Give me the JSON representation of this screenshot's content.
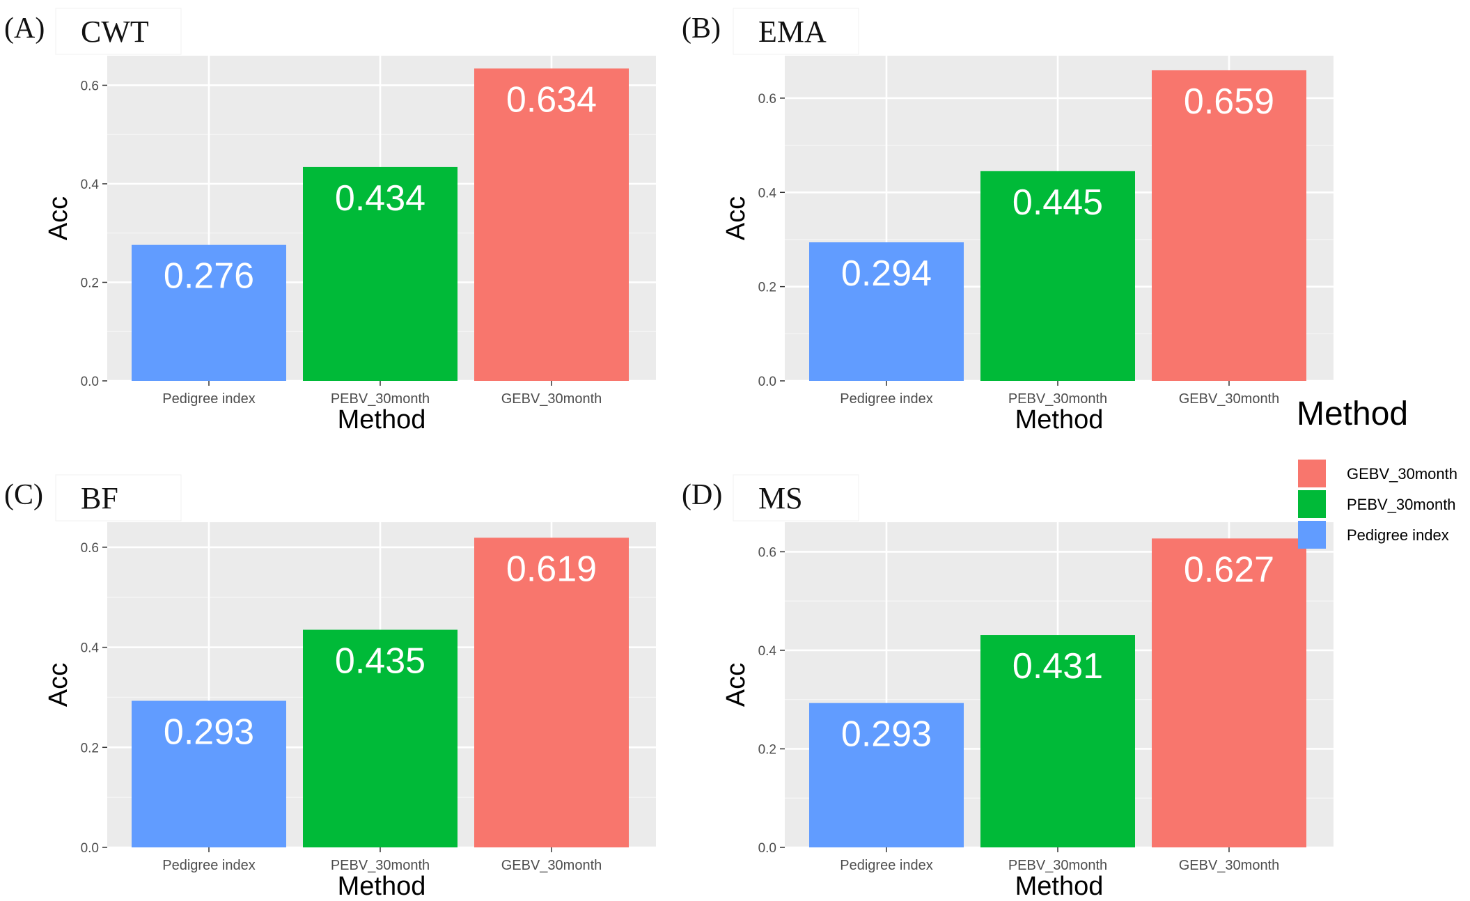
{
  "chart_data": [
    {
      "type": "bar",
      "panel_letter": "(A)",
      "title": "CWT",
      "xlabel": "Method",
      "ylabel": "Acc",
      "categories": [
        "Pedigree index",
        "PEBV_30month",
        "GEBV_30month"
      ],
      "values": [
        0.276,
        0.434,
        0.634
      ],
      "value_labels": [
        "0.276",
        "0.434",
        "0.634"
      ],
      "colors": [
        "#619CFF",
        "#00BA38",
        "#F8766D"
      ],
      "ylim": [
        0,
        0.66
      ],
      "yticks": [
        0.0,
        0.2,
        0.4,
        0.6
      ],
      "ytick_labels": [
        "0.0",
        "0.2",
        "0.4",
        "0.6"
      ],
      "grid": true
    },
    {
      "type": "bar",
      "panel_letter": "(B)",
      "title": "EMA",
      "xlabel": "Method",
      "ylabel": "Acc",
      "categories": [
        "Pedigree index",
        "PEBV_30month",
        "GEBV_30month"
      ],
      "values": [
        0.294,
        0.445,
        0.659
      ],
      "value_labels": [
        "0.294",
        "0.445",
        "0.659"
      ],
      "colors": [
        "#619CFF",
        "#00BA38",
        "#F8766D"
      ],
      "ylim": [
        0,
        0.69
      ],
      "yticks": [
        0.0,
        0.2,
        0.4,
        0.6
      ],
      "ytick_labels": [
        "0.0",
        "0.2",
        "0.4",
        "0.6"
      ],
      "grid": true
    },
    {
      "type": "bar",
      "panel_letter": "(C)",
      "title": "BF",
      "xlabel": "Method",
      "ylabel": "Acc",
      "categories": [
        "Pedigree index",
        "PEBV_30month",
        "GEBV_30month"
      ],
      "values": [
        0.293,
        0.435,
        0.619
      ],
      "value_labels": [
        "0.293",
        "0.435",
        "0.619"
      ],
      "colors": [
        "#619CFF",
        "#00BA38",
        "#F8766D"
      ],
      "ylim": [
        0,
        0.65
      ],
      "yticks": [
        0.0,
        0.2,
        0.4,
        0.6
      ],
      "ytick_labels": [
        "0.0",
        "0.2",
        "0.4",
        "0.6"
      ],
      "grid": true
    },
    {
      "type": "bar",
      "panel_letter": "(D)",
      "title": "MS",
      "xlabel": "Method",
      "ylabel": "Acc",
      "categories": [
        "Pedigree index",
        "PEBV_30month",
        "GEBV_30month"
      ],
      "values": [
        0.293,
        0.431,
        0.627
      ],
      "value_labels": [
        "0.293",
        "0.431",
        "0.627"
      ],
      "colors": [
        "#619CFF",
        "#00BA38",
        "#F8766D"
      ],
      "ylim": [
        0,
        0.66
      ],
      "yticks": [
        0.0,
        0.2,
        0.4,
        0.6
      ],
      "ytick_labels": [
        "0.0",
        "0.2",
        "0.4",
        "0.6"
      ],
      "grid": true
    }
  ],
  "legend": {
    "title": "Method",
    "placement": "right",
    "items": [
      {
        "label": "GEBV_30month",
        "color": "#F8766D"
      },
      {
        "label": "PEBV_30month",
        "color": "#00BA38"
      },
      {
        "label": "Pedigree index",
        "color": "#619CFF"
      }
    ]
  },
  "colors": {
    "panel_background": "#EBEBEB",
    "grid_line": "#FFFFFF",
    "tick_text": "#4D4D4D"
  }
}
